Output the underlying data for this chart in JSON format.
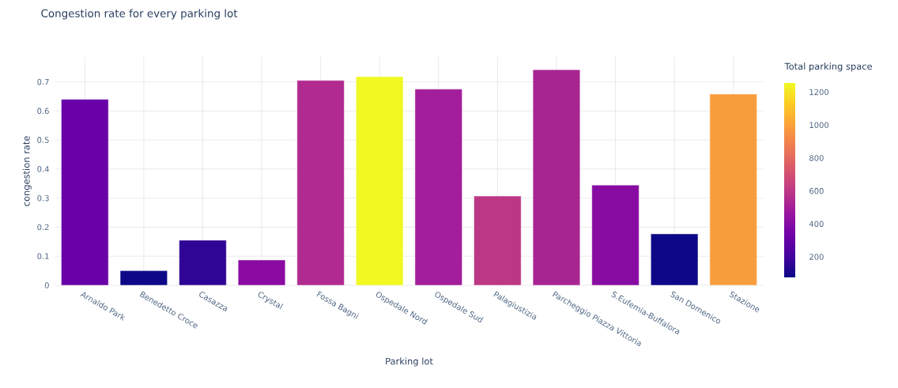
{
  "chart_data": {
    "type": "bar",
    "title": "Congestion rate for every parking lot",
    "xlabel": "Parking lot",
    "ylabel": "congestion rate",
    "clabel": "Total parking space",
    "categories": [
      "Arnaldo Park",
      "Benedetto Croce",
      "Casazza",
      "Crystal",
      "Fossa Bagni",
      "Ospedale Nord",
      "Ospedale Sud",
      "Palagiustizia",
      "Parcheggio Piazza Vittoria",
      "S.Eufemia-Buffalora",
      "San Domenico",
      "Stazione"
    ],
    "values": [
      0.64,
      0.05,
      0.155,
      0.087,
      0.705,
      0.718,
      0.675,
      0.307,
      0.742,
      0.345,
      0.177,
      0.658
    ],
    "colors": [
      "#6a00a8",
      "#0d0887",
      "#2e0595",
      "#8a0aa2",
      "#b12a90",
      "#f0f921",
      "#a31e9a",
      "#bc3784",
      "#a72591",
      "#880ca2",
      "#0d0887",
      "#f89d3c"
    ],
    "ylim": [
      0,
      0.786
    ],
    "yticks": [
      0,
      0.1,
      0.2,
      0.3,
      0.4,
      0.5,
      0.6,
      0.7
    ],
    "clim": [
      76,
      1256
    ],
    "cticks": [
      200,
      400,
      600,
      800,
      1000,
      1200
    ],
    "grid": true
  }
}
